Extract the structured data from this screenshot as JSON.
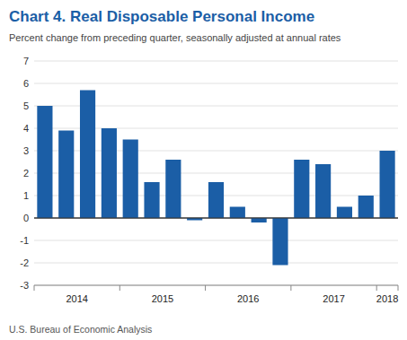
{
  "chart_data": {
    "type": "bar",
    "title": "Chart 4. Real Disposable Personal Income",
    "subtitle": "Percent change from preceding quarter, seasonally adjusted at annual rates",
    "annotations": [
      "U.S. Bureau of Economic Analysis"
    ],
    "categories": [
      "2014",
      "2014",
      "2014",
      "2014",
      "2015",
      "2015",
      "2015",
      "2015",
      "2016",
      "2016",
      "2016",
      "2016",
      "2017",
      "2017",
      "2017",
      "2017",
      "2018"
    ],
    "values": [
      5.0,
      3.9,
      5.7,
      4.0,
      3.5,
      1.6,
      2.6,
      -0.1,
      1.6,
      0.5,
      -0.2,
      -2.1,
      2.6,
      2.4,
      0.5,
      1.0,
      3.0
    ],
    "color": "#1B5EA6",
    "ylim": [
      -3,
      7
    ],
    "yticks": [
      -3,
      -2,
      -1,
      0,
      1,
      2,
      3,
      4,
      5,
      6,
      7
    ],
    "grid": true
  }
}
